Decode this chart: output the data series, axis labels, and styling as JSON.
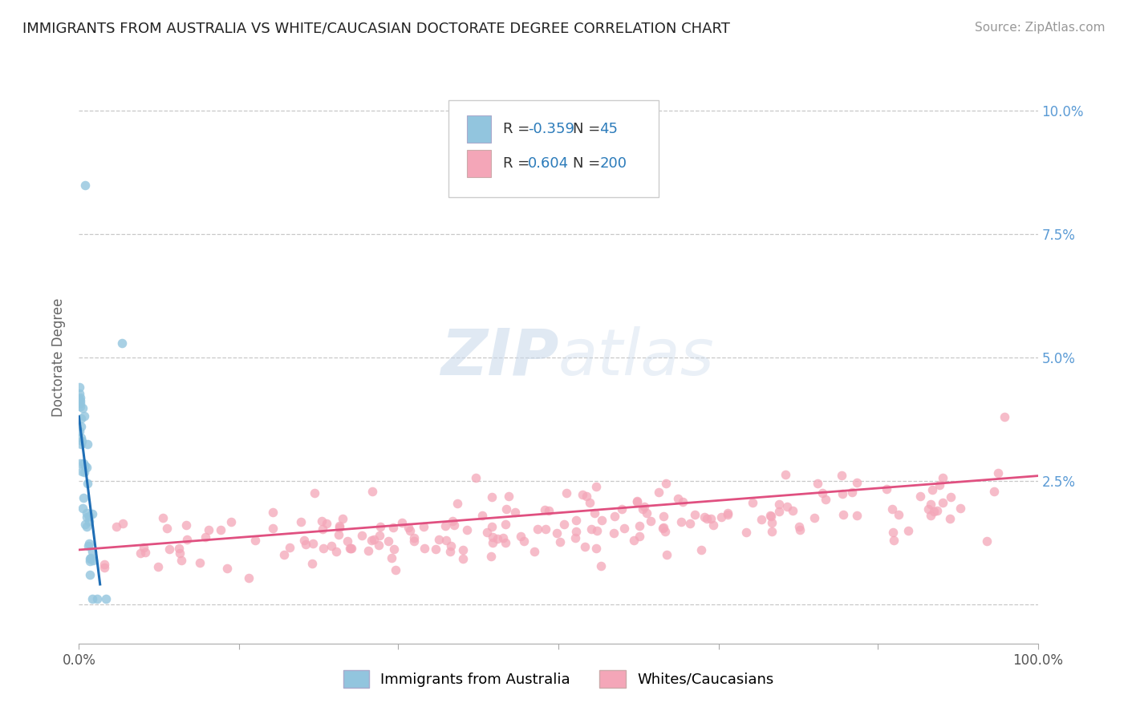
{
  "title": "IMMIGRANTS FROM AUSTRALIA VS WHITE/CAUCASIAN DOCTORATE DEGREE CORRELATION CHART",
  "source": "Source: ZipAtlas.com",
  "ylabel": "Doctorate Degree",
  "color_blue": "#92c5de",
  "color_pink": "#f4a6b8",
  "color_blue_line": "#1f6eb5",
  "color_pink_line": "#e05080",
  "watermark_zip": "ZIP",
  "watermark_atlas": "atlas",
  "legend_label1": "Immigrants from Australia",
  "legend_label2": "Whites/Caucasians",
  "background_color": "#ffffff",
  "grid_color": "#bbbbbb",
  "title_color": "#222222",
  "ytick_color": "#5b9bd5",
  "source_color": "#999999"
}
